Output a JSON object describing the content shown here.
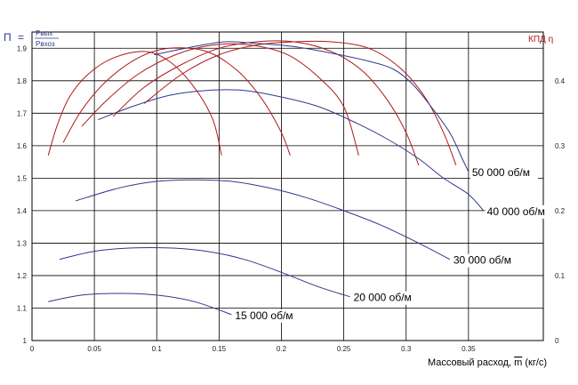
{
  "chart_data": {
    "type": "line",
    "x": [
      0,
      0.05,
      0.1,
      0.15,
      0.2,
      0.25,
      0.3,
      0.35
    ],
    "xlim": [
      0,
      0.41
    ],
    "x_tick_labels": [
      "0",
      "0.05",
      "0.1",
      "0.15",
      "0.2",
      "0.25",
      "0.3",
      "0.35"
    ],
    "xlabel_prefix": "Массовый расход, ",
    "xlabel_var": "m",
    "xlabel_unit": " (кг/с)",
    "ylim": [
      1.0,
      1.95
    ],
    "y_tick_labels": [
      "1",
      "1.1",
      "1.2",
      "1.3",
      "1.4",
      "1.5",
      "1.6",
      "1.7",
      "1.8",
      "1.9"
    ],
    "ylabel": {
      "symbol": "П",
      "eq": "=",
      "numerator": "Pвых",
      "denominator": "Pвхоз"
    },
    "y2lim": [
      0,
      0.475
    ],
    "y2_tick_labels": [
      "0",
      "0.1",
      "0.2",
      "0.3",
      "0.4"
    ],
    "y2label": "КПД η",
    "colors": {
      "pressure": "#2e3a8c",
      "efficiency": "#b01818",
      "grid": "#000000",
      "label_axis_left": "#2e3a8c",
      "label_axis_right": "#b01818"
    },
    "pressure_series": [
      {
        "name": "15 000 об/м",
        "points": [
          [
            0.013,
            1.12
          ],
          [
            0.04,
            1.14
          ],
          [
            0.07,
            1.145
          ],
          [
            0.1,
            1.14
          ],
          [
            0.13,
            1.12
          ],
          [
            0.16,
            1.08
          ]
        ]
      },
      {
        "name": "20 000 об/м",
        "points": [
          [
            0.022,
            1.25
          ],
          [
            0.05,
            1.275
          ],
          [
            0.08,
            1.285
          ],
          [
            0.11,
            1.285
          ],
          [
            0.14,
            1.275
          ],
          [
            0.17,
            1.25
          ],
          [
            0.2,
            1.21
          ],
          [
            0.23,
            1.165
          ],
          [
            0.255,
            1.135
          ]
        ]
      },
      {
        "name": "30 000 об/м",
        "points": [
          [
            0.035,
            1.43
          ],
          [
            0.07,
            1.47
          ],
          [
            0.1,
            1.49
          ],
          [
            0.13,
            1.495
          ],
          [
            0.16,
            1.49
          ],
          [
            0.19,
            1.47
          ],
          [
            0.22,
            1.44
          ],
          [
            0.25,
            1.4
          ],
          [
            0.28,
            1.355
          ],
          [
            0.31,
            1.3
          ],
          [
            0.335,
            1.25
          ]
        ]
      },
      {
        "name": "40 000 об/м",
        "points": [
          [
            0.053,
            1.68
          ],
          [
            0.08,
            1.72
          ],
          [
            0.11,
            1.755
          ],
          [
            0.14,
            1.77
          ],
          [
            0.17,
            1.77
          ],
          [
            0.2,
            1.75
          ],
          [
            0.23,
            1.72
          ],
          [
            0.26,
            1.67
          ],
          [
            0.285,
            1.62
          ],
          [
            0.31,
            1.56
          ],
          [
            0.33,
            1.5
          ],
          [
            0.35,
            1.45
          ],
          [
            0.362,
            1.4
          ]
        ]
      },
      {
        "name": "50 000 об/м",
        "points": [
          [
            0.098,
            1.88
          ],
          [
            0.13,
            1.905
          ],
          [
            0.155,
            1.92
          ],
          [
            0.18,
            1.915
          ],
          [
            0.21,
            1.905
          ],
          [
            0.24,
            1.885
          ],
          [
            0.27,
            1.86
          ],
          [
            0.29,
            1.835
          ],
          [
            0.305,
            1.79
          ],
          [
            0.32,
            1.72
          ],
          [
            0.335,
            1.64
          ],
          [
            0.345,
            1.56
          ],
          [
            0.35,
            1.52
          ]
        ]
      }
    ],
    "efficiency_series": [
      {
        "name": "15 000 об/м",
        "points": [
          [
            0.013,
            0.285
          ],
          [
            0.02,
            0.33
          ],
          [
            0.03,
            0.375
          ],
          [
            0.045,
            0.41
          ],
          [
            0.065,
            0.435
          ],
          [
            0.09,
            0.445
          ],
          [
            0.11,
            0.43
          ],
          [
            0.13,
            0.39
          ],
          [
            0.145,
            0.34
          ],
          [
            0.152,
            0.285
          ]
        ]
      },
      {
        "name": "20 000 об/м",
        "points": [
          [
            0.025,
            0.305
          ],
          [
            0.04,
            0.355
          ],
          [
            0.06,
            0.4
          ],
          [
            0.085,
            0.435
          ],
          [
            0.11,
            0.45
          ],
          [
            0.14,
            0.445
          ],
          [
            0.165,
            0.415
          ],
          [
            0.185,
            0.37
          ],
          [
            0.2,
            0.32
          ],
          [
            0.207,
            0.285
          ]
        ]
      },
      {
        "name": "30 000 об/м",
        "points": [
          [
            0.04,
            0.33
          ],
          [
            0.06,
            0.37
          ],
          [
            0.085,
            0.41
          ],
          [
            0.115,
            0.44
          ],
          [
            0.145,
            0.455
          ],
          [
            0.175,
            0.455
          ],
          [
            0.205,
            0.44
          ],
          [
            0.23,
            0.405
          ],
          [
            0.25,
            0.36
          ],
          [
            0.262,
            0.285
          ]
        ]
      },
      {
        "name": "40 000 об/м",
        "points": [
          [
            0.065,
            0.345
          ],
          [
            0.09,
            0.39
          ],
          [
            0.12,
            0.425
          ],
          [
            0.15,
            0.45
          ],
          [
            0.18,
            0.46
          ],
          [
            0.21,
            0.46
          ],
          [
            0.24,
            0.445
          ],
          [
            0.265,
            0.415
          ],
          [
            0.285,
            0.37
          ],
          [
            0.3,
            0.32
          ],
          [
            0.31,
            0.27
          ]
        ]
      },
      {
        "name": "50 000 об/м",
        "points": [
          [
            0.09,
            0.365
          ],
          [
            0.12,
            0.41
          ],
          [
            0.15,
            0.44
          ],
          [
            0.18,
            0.455
          ],
          [
            0.21,
            0.46
          ],
          [
            0.24,
            0.46
          ],
          [
            0.27,
            0.45
          ],
          [
            0.295,
            0.42
          ],
          [
            0.315,
            0.375
          ],
          [
            0.33,
            0.32
          ],
          [
            0.34,
            0.27
          ]
        ]
      }
    ],
    "speed_labels": [
      "15 000 об/м",
      "20 000 об/м",
      "30 000 об/м",
      "40 000 об/м",
      "50 000 об/м"
    ]
  }
}
